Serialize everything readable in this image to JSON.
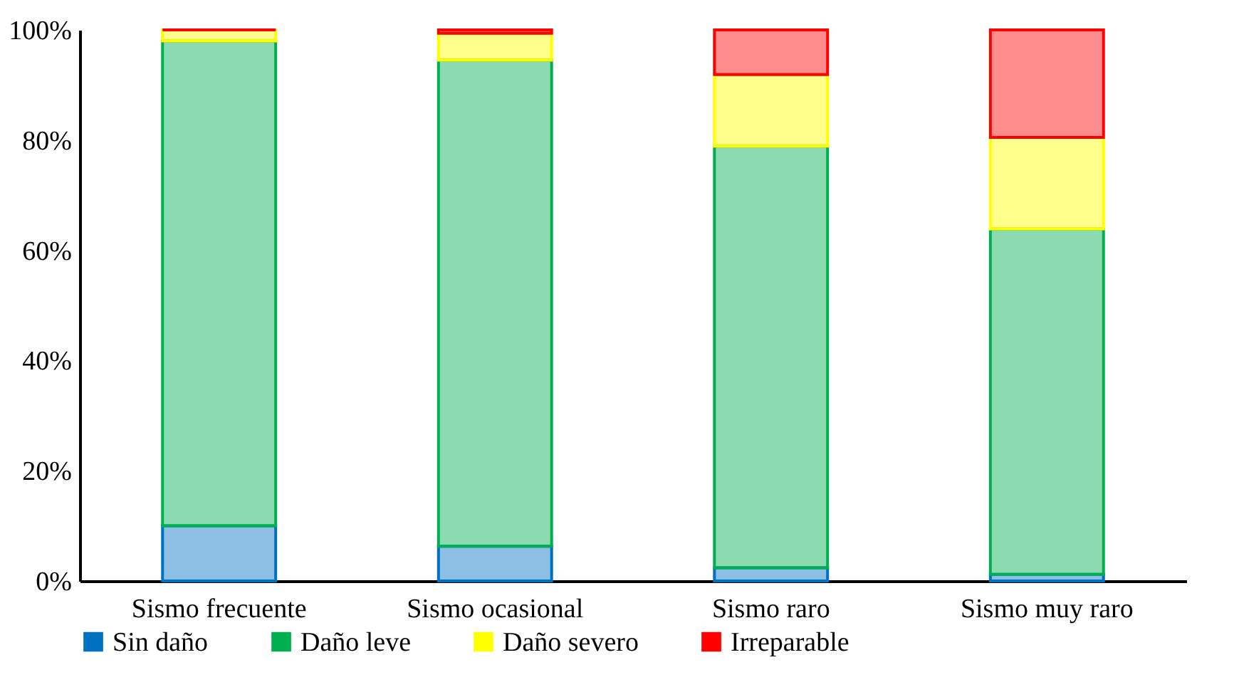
{
  "chart_data": {
    "type": "bar",
    "stacked": true,
    "categories": [
      "Sismo frecuente",
      "Sismo ocasional",
      "Sismo raro",
      "Sismo muy raro"
    ],
    "series": [
      {
        "name": "Sin daño",
        "color": "#0070c0",
        "values": [
          10,
          6.3,
          2.4,
          1.2
        ]
      },
      {
        "name": "Daño leve",
        "color": "#00b050",
        "values": [
          88,
          88.2,
          76.5,
          62.7
        ]
      },
      {
        "name": "Daño severo",
        "color": "#ffff00",
        "values": [
          2,
          4.9,
          13,
          16.6
        ]
      },
      {
        "name": "Irreparable",
        "color": "#ff0000",
        "values": [
          0,
          0.6,
          8.1,
          19.5
        ]
      }
    ],
    "ylim": [
      0,
      100
    ],
    "yticks": [
      {
        "value": 0,
        "label": "0%"
      },
      {
        "value": 20,
        "label": "20%"
      },
      {
        "value": 40,
        "label": "40%"
      },
      {
        "value": 60,
        "label": "60%"
      },
      {
        "value": 80,
        "label": "80%"
      },
      {
        "value": 100,
        "label": "100%"
      }
    ],
    "grid": false,
    "legend": "bottom"
  }
}
